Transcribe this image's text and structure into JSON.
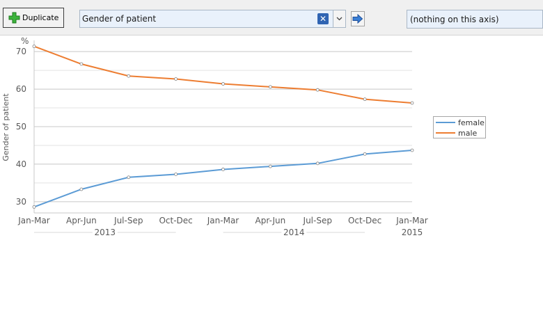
{
  "toolbar": {
    "duplicate_label": "Duplicate",
    "variable_select": "Gender of patient",
    "axis_field": "(nothing on this axis)"
  },
  "colors": {
    "female": "#5b9bd5",
    "male": "#ed7d31"
  },
  "chart_data": {
    "type": "line",
    "ylabel": "Gender of patient",
    "yunit": "%",
    "ylim": [
      27,
      73
    ],
    "yticks": [
      30,
      40,
      50,
      60,
      70
    ],
    "grid": true,
    "legend_position": "right",
    "categories": [
      "Jan-Mar",
      "Apr-Jun",
      "Jul-Sep",
      "Oct-Dec",
      "Jan-Mar",
      "Apr-Jun",
      "Jul-Sep",
      "Oct-Dec",
      "Jan-Mar"
    ],
    "years": [
      {
        "label": "2013",
        "start": 0,
        "end": 3
      },
      {
        "label": "2014",
        "start": 4,
        "end": 7
      },
      {
        "label": "2015",
        "start": 8,
        "end": 8
      }
    ],
    "series": [
      {
        "name": "female",
        "values": [
          28.6,
          33.3,
          36.5,
          37.3,
          38.6,
          39.4,
          40.2,
          42.7,
          43.7
        ]
      },
      {
        "name": "male",
        "values": [
          71.4,
          66.7,
          63.5,
          62.7,
          61.4,
          60.6,
          59.8,
          57.3,
          56.3
        ]
      }
    ]
  }
}
